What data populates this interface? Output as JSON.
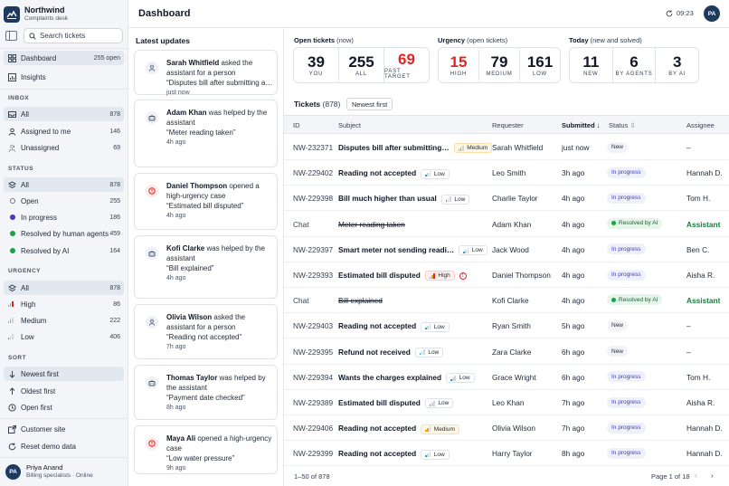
{
  "brand": {
    "name": "Northwind",
    "subtitle": "Complaints desk"
  },
  "search": {
    "placeholder": "Search tickets"
  },
  "nav": {
    "dashboard": {
      "label": "Dashboard",
      "count": "255 open"
    },
    "insights": {
      "label": "Insights"
    }
  },
  "inbox": {
    "heading": "INBOX",
    "items": [
      {
        "label": "All",
        "count": "878"
      },
      {
        "label": "Assigned to me",
        "count": "146"
      },
      {
        "label": "Unassigned",
        "count": "69"
      }
    ]
  },
  "status_filter": {
    "heading": "STATUS",
    "items": [
      {
        "label": "All",
        "count": "878"
      },
      {
        "label": "Open",
        "count": "255"
      },
      {
        "label": "In progress",
        "count": "186"
      },
      {
        "label": "Resolved by human agents",
        "count": "459"
      },
      {
        "label": "Resolved by AI",
        "count": "164"
      }
    ]
  },
  "urgency_filter": {
    "heading": "URGENCY",
    "items": [
      {
        "label": "All",
        "count": "878"
      },
      {
        "label": "High",
        "count": "86"
      },
      {
        "label": "Medium",
        "count": "222"
      },
      {
        "label": "Low",
        "count": "406"
      }
    ]
  },
  "sort": {
    "heading": "SORT",
    "items": [
      {
        "label": "Newest first"
      },
      {
        "label": "Oldest first"
      },
      {
        "label": "Open first"
      }
    ]
  },
  "footer_links": {
    "customer_site": "Customer site",
    "reset": "Reset demo data"
  },
  "user": {
    "initials": "PA",
    "name": "Priya Anand",
    "role": "Billing specialists · Online"
  },
  "header": {
    "title": "Dashboard",
    "time": "09:23",
    "initials": "PA"
  },
  "updates": {
    "title": "Latest updates",
    "cards": [
      {
        "name": "Sarah Whitfield",
        "action": " asked the assistant for a person",
        "quote": "“Disputes bill after submitting a meter reading”",
        "ago": "just now",
        "kind": "person",
        "color": "#64748b"
      },
      {
        "name": "Adam Khan",
        "action": " was helped by the assistant",
        "quote": "“Meter reading taken”",
        "ago": "4h ago",
        "kind": "bot",
        "color": "#475569"
      },
      {
        "name": "Daniel Thompson",
        "action": " opened a high-urgency case",
        "quote": "“Estimated bill disputed”",
        "ago": "4h ago",
        "kind": "alert",
        "color": "#dc2626"
      },
      {
        "name": "Kofi Clarke",
        "action": " was helped by the assistant",
        "quote": "“Bill explained”",
        "ago": "4h ago",
        "kind": "bot",
        "color": "#475569"
      },
      {
        "name": "Olivia Wilson",
        "action": " asked the assistant for a person",
        "quote": "“Reading not accepted”",
        "ago": "7h ago",
        "kind": "person",
        "color": "#64748b"
      },
      {
        "name": "Thomas Taylor",
        "action": " was helped by the assistant",
        "quote": "“Payment date checked”",
        "ago": "8h ago",
        "kind": "bot",
        "color": "#475569"
      },
      {
        "name": "Maya Ali",
        "action": " opened a high-urgency case",
        "quote": "“Low water pressure”",
        "ago": "9h ago",
        "kind": "alert",
        "color": "#dc2626"
      }
    ]
  },
  "stats": {
    "open": {
      "label": "Open tickets",
      "sub": "(now)",
      "cells": [
        {
          "num": "39",
          "cap": "YOU",
          "color": "#111827"
        },
        {
          "num": "255",
          "cap": "ALL",
          "color": "#111827"
        },
        {
          "num": "69",
          "cap": "PAST TARGET",
          "color": "#dc2626"
        }
      ]
    },
    "urgency": {
      "label": "Urgency",
      "sub": "(open tickets)",
      "cells": [
        {
          "num": "15",
          "cap": "HIGH",
          "color": "#dc2626"
        },
        {
          "num": "79",
          "cap": "MEDIUM",
          "color": "#111827"
        },
        {
          "num": "161",
          "cap": "LOW",
          "color": "#111827"
        }
      ]
    },
    "today": {
      "label": "Today",
      "sub": "(new and solved)",
      "cells": [
        {
          "num": "11",
          "cap": "NEW",
          "color": "#111827"
        },
        {
          "num": "6",
          "cap": "BY AGENTS",
          "color": "#111827"
        },
        {
          "num": "3",
          "cap": "BY AI",
          "color": "#111827"
        }
      ]
    }
  },
  "tickets": {
    "title": "Tickets",
    "count": "(878)",
    "sort_label": "Newest first",
    "columns": {
      "id": "ID",
      "subject": "Subject",
      "requester": "Requester",
      "submitted": "Submitted",
      "status": "Status",
      "assignee": "Assignee"
    },
    "rows": [
      {
        "id": "NW-232371",
        "subject": "Disputes bill after submitting…",
        "priority": "Medium",
        "alert": false,
        "requester": "Sarah Whitfield",
        "submitted": "just now",
        "status": "New",
        "status_kind": "new",
        "assignee": "–",
        "chat": false
      },
      {
        "id": "NW-229402",
        "subject": "Reading not accepted",
        "priority": "Low",
        "alert": false,
        "requester": "Leo Smith",
        "submitted": "3h ago",
        "status": "In progress",
        "status_kind": "prog",
        "assignee": "Hannah D.",
        "chat": false
      },
      {
        "id": "NW-229398",
        "subject": "Bill much higher than usual",
        "priority": "Low",
        "alert": false,
        "requester": "Charlie Taylor",
        "submitted": "4h ago",
        "status": "In progress",
        "status_kind": "prog",
        "assignee": "Tom H.",
        "chat": false
      },
      {
        "id": "Chat",
        "subject": "Meter reading taken",
        "priority": "",
        "alert": false,
        "requester": "Adam Khan",
        "submitted": "4h ago",
        "status": "Resolved by AI",
        "status_kind": "res",
        "assignee": "Assistant",
        "chat": true
      },
      {
        "id": "NW-229397",
        "subject": "Smart meter not sending readi…",
        "priority": "Low",
        "alert": false,
        "requester": "Jack Wood",
        "submitted": "4h ago",
        "status": "In progress",
        "status_kind": "prog",
        "assignee": "Ben C.",
        "chat": false
      },
      {
        "id": "NW-229393",
        "subject": "Estimated bill disputed",
        "priority": "High",
        "alert": true,
        "requester": "Daniel Thompson",
        "submitted": "4h ago",
        "status": "In progress",
        "status_kind": "prog",
        "assignee": "Aisha R.",
        "chat": false
      },
      {
        "id": "Chat",
        "subject": "Bill explained",
        "priority": "",
        "alert": false,
        "requester": "Kofi Clarke",
        "submitted": "4h ago",
        "status": "Resolved by AI",
        "status_kind": "res",
        "assignee": "Assistant",
        "chat": true
      },
      {
        "id": "NW-229403",
        "subject": "Reading not accepted",
        "priority": "Low",
        "alert": false,
        "requester": "Ryan Smith",
        "submitted": "5h ago",
        "status": "New",
        "status_kind": "new",
        "assignee": "–",
        "chat": false
      },
      {
        "id": "NW-229395",
        "subject": "Refund not received",
        "priority": "Low",
        "alert": false,
        "requester": "Zara Clarke",
        "submitted": "6h ago",
        "status": "New",
        "status_kind": "new",
        "assignee": "–",
        "chat": false
      },
      {
        "id": "NW-229394",
        "subject": "Wants the charges explained",
        "priority": "Low",
        "alert": false,
        "requester": "Grace Wright",
        "submitted": "6h ago",
        "status": "In progress",
        "status_kind": "prog",
        "assignee": "Tom H.",
        "chat": false
      },
      {
        "id": "NW-229389",
        "subject": "Estimated bill disputed",
        "priority": "Low",
        "alert": false,
        "requester": "Leo Khan",
        "submitted": "7h ago",
        "status": "In progress",
        "status_kind": "prog",
        "assignee": "Aisha R.",
        "chat": false
      },
      {
        "id": "NW-229406",
        "subject": "Reading not accepted",
        "priority": "Medium",
        "alert": false,
        "requester": "Olivia Wilson",
        "submitted": "7h ago",
        "status": "In progress",
        "status_kind": "prog",
        "assignee": "Hannah D.",
        "chat": false
      },
      {
        "id": "NW-229399",
        "subject": "Reading not accepted",
        "priority": "Low",
        "alert": false,
        "requester": "Harry Taylor",
        "submitted": "8h ago",
        "status": "In progress",
        "status_kind": "prog",
        "assignee": "Hannah D.",
        "chat": false
      }
    ],
    "range": "1–50 of 878",
    "page": "Page 1 of 18"
  },
  "colors": {
    "accent": "#1e3a5f",
    "high": "#dc2626",
    "medium": "#f59e0b",
    "low": "#9ca3af",
    "resolved": "#15803d",
    "progress": "#4338ca"
  }
}
